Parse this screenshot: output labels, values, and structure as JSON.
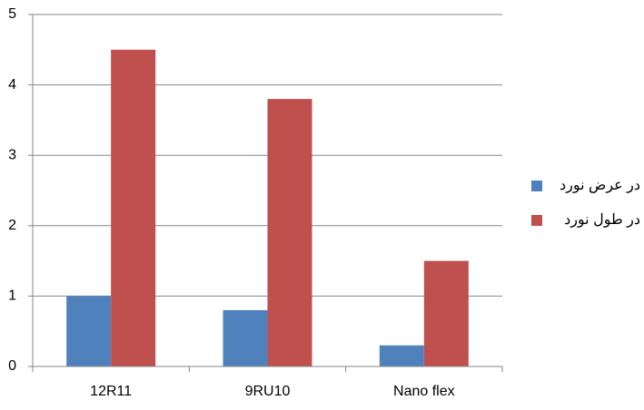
{
  "chart_data": {
    "type": "bar",
    "categories": [
      "12R11",
      "9RU10",
      "Nano flex"
    ],
    "series": [
      {
        "name": "در عرض نورد",
        "color": "#4f81bd",
        "values": [
          1,
          0.8,
          0.3
        ]
      },
      {
        "name": "در طول نورد",
        "color": "#c0504d",
        "values": [
          4.5,
          3.8,
          1.5
        ]
      }
    ],
    "ylim": [
      0,
      5
    ],
    "yticks": [
      0,
      1,
      2,
      3,
      4,
      5
    ],
    "grid": true,
    "legend": "right"
  }
}
